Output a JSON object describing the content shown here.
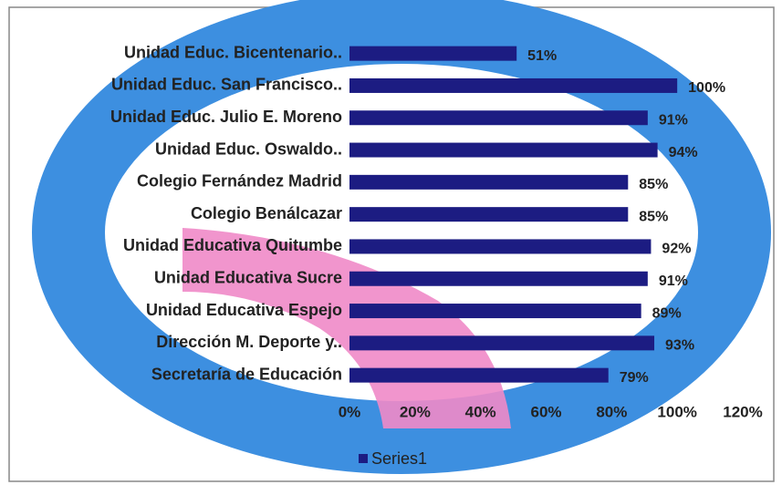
{
  "chart_data": {
    "type": "bar",
    "orientation": "horizontal",
    "categories": [
      "Unidad Educ. Bicentenario..",
      "Unidad Educ. San Francisco..",
      "Unidad Educ. Julio E. Moreno",
      "Unidad Educ. Oswaldo..",
      "Colegio Fernández Madrid",
      "Colegio Benálcazar",
      "Unidad Educativa Quitumbe",
      "Unidad Educativa Sucre",
      "Unidad Educativa Espejo",
      "Dirección M. Deporte y..",
      "Secretaría de Educación"
    ],
    "series": [
      {
        "name": "Series1",
        "color": "#1c1c82",
        "values": [
          51,
          100,
          91,
          94,
          85,
          85,
          92,
          91,
          89,
          93,
          79
        ],
        "value_labels": [
          "51%",
          "100%",
          "91%",
          "94%",
          "85%",
          "85%",
          "92%",
          "91%",
          "89%",
          "93%",
          "79%"
        ]
      }
    ],
    "xlim": [
      0,
      120
    ],
    "xticks": [
      {
        "value": 0,
        "label": "0%"
      },
      {
        "value": 20,
        "label": "20%"
      },
      {
        "value": 40,
        "label": "40%"
      },
      {
        "value": 60,
        "label": "60%"
      },
      {
        "value": 80,
        "label": "80%"
      },
      {
        "value": 100,
        "label": "100%"
      },
      {
        "value": 120,
        "label": "120%"
      }
    ],
    "legend": "bottom"
  }
}
